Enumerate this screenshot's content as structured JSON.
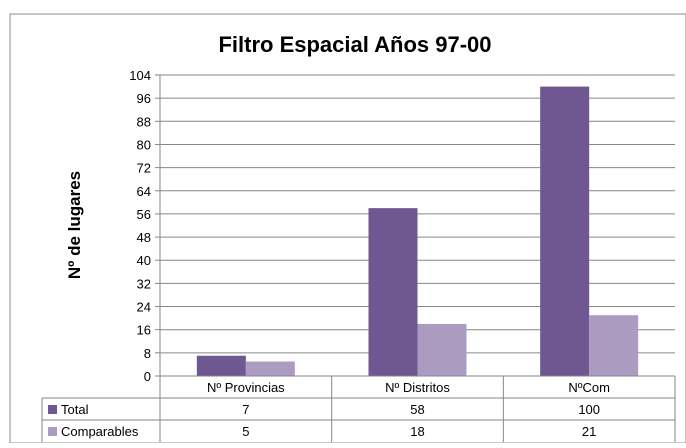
{
  "chart_data": {
    "type": "bar",
    "title": "Filtro Espacial Años 97-00",
    "ylabel": "Nº de lugares",
    "xlabel": "",
    "categories": [
      "Nº  Provincias",
      "Nº Distritos",
      "NºCom"
    ],
    "series": [
      {
        "name": "Total",
        "values": [
          7,
          58,
          100
        ],
        "color": "#6f5792"
      },
      {
        "name": "Comparables",
        "values": [
          5,
          18,
          21
        ],
        "color": "#ab9bc1"
      }
    ],
    "ylim": [
      0,
      104
    ],
    "yticks": [
      0,
      8,
      16,
      24,
      32,
      40,
      48,
      56,
      64,
      72,
      80,
      88,
      96,
      104
    ],
    "grid": true,
    "legend_placement": "data-table"
  }
}
